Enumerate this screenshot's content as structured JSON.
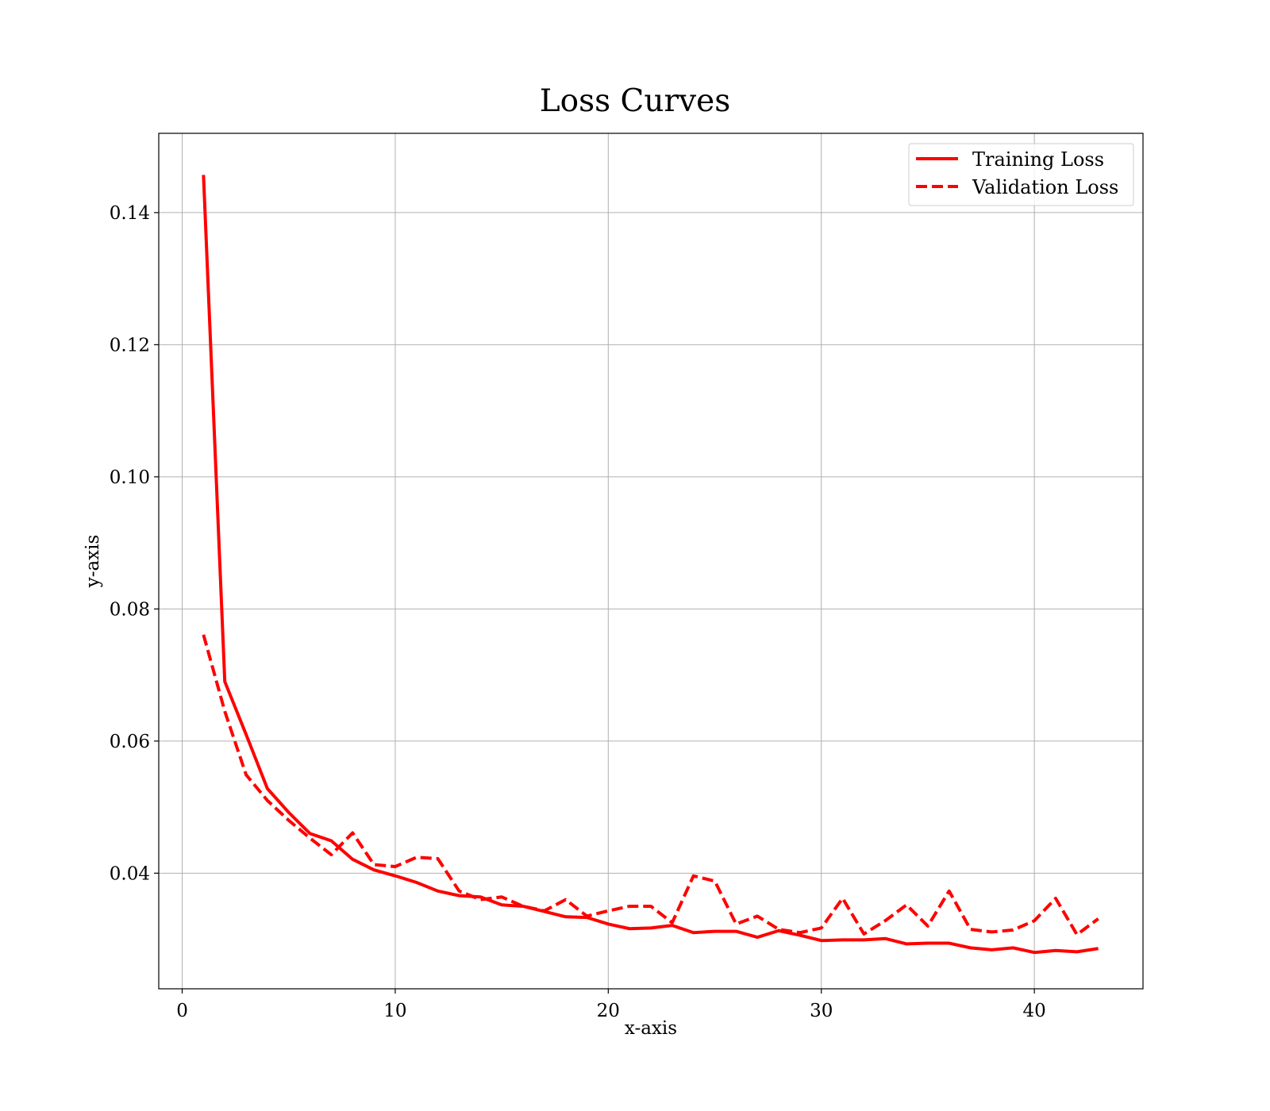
{
  "chart_data": {
    "type": "line",
    "title": "Loss Curves",
    "xlabel": "x-axis",
    "ylabel": "y-axis",
    "xlim": [
      -1.1,
      45.1
    ],
    "ylim": [
      0.0225,
      0.152
    ],
    "xticks": [
      0,
      10,
      20,
      30,
      40
    ],
    "xtick_labels": [
      "0",
      "10",
      "20",
      "30",
      "40"
    ],
    "yticks": [
      0.04,
      0.06,
      0.08,
      0.1,
      0.12,
      0.14
    ],
    "ytick_labels": [
      "0.04",
      "0.06",
      "0.08",
      "0.10",
      "0.12",
      "0.14"
    ],
    "grid": true,
    "legend_position": "top-right",
    "x": [
      1,
      2,
      3,
      4,
      5,
      6,
      7,
      8,
      9,
      10,
      11,
      12,
      13,
      14,
      15,
      16,
      17,
      18,
      19,
      20,
      21,
      22,
      23,
      24,
      25,
      26,
      27,
      28,
      29,
      30,
      31,
      32,
      33,
      34,
      35,
      36,
      37,
      38,
      39,
      40,
      41,
      42,
      43
    ],
    "series": [
      {
        "name": "Training Loss",
        "color": "#ff0000",
        "style": "solid",
        "values": [
          0.1457,
          0.069,
          0.061,
          0.0528,
          0.0492,
          0.046,
          0.0449,
          0.0421,
          0.0405,
          0.0396,
          0.0386,
          0.0373,
          0.0366,
          0.0364,
          0.0352,
          0.035,
          0.0342,
          0.0334,
          0.0333,
          0.0323,
          0.0316,
          0.0317,
          0.0321,
          0.031,
          0.0312,
          0.0312,
          0.0303,
          0.0313,
          0.0306,
          0.0298,
          0.0299,
          0.0299,
          0.0301,
          0.0293,
          0.0294,
          0.0294,
          0.0287,
          0.0284,
          0.0287,
          0.028,
          0.0283,
          0.0281,
          0.0286
        ]
      },
      {
        "name": "Validation Loss",
        "color": "#ff0000",
        "style": "dashed",
        "values": [
          0.0761,
          0.0645,
          0.0549,
          0.051,
          0.048,
          0.0453,
          0.0428,
          0.0461,
          0.0413,
          0.041,
          0.0424,
          0.0422,
          0.0373,
          0.036,
          0.0364,
          0.035,
          0.0343,
          0.036,
          0.0335,
          0.0343,
          0.035,
          0.035,
          0.0325,
          0.0396,
          0.0388,
          0.0323,
          0.0335,
          0.0315,
          0.031,
          0.0317,
          0.0362,
          0.0308,
          0.0328,
          0.0352,
          0.032,
          0.0373,
          0.0315,
          0.0311,
          0.0314,
          0.0328,
          0.0362,
          0.0307,
          0.0331
        ]
      }
    ]
  }
}
